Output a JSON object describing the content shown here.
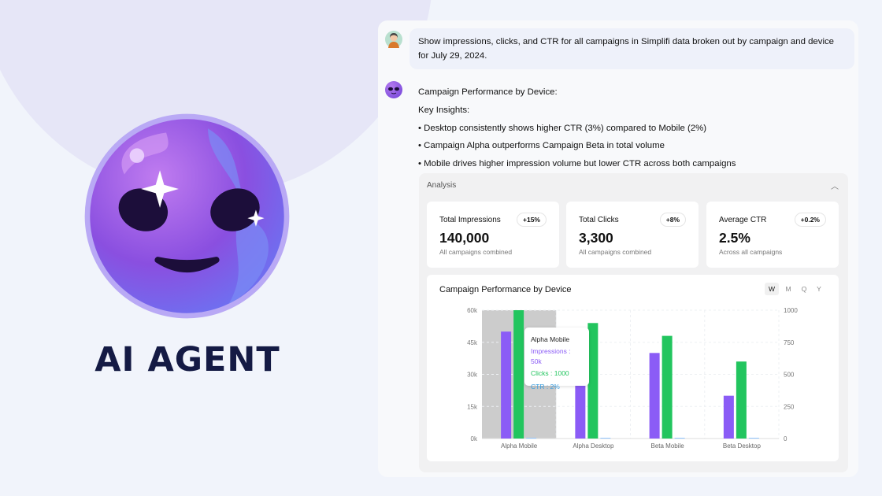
{
  "brand": {
    "title": "AI AGENT"
  },
  "chat": {
    "user_message": "Show impressions, clicks, and CTR for all campaigns in Simplifi data broken out by campaign and device for July 29, 2024.",
    "response": {
      "heading": "Campaign Performance by Device:",
      "insights_label": "Key Insights:",
      "bullets": [
        "• Desktop consistently shows higher CTR (3%) compared to Mobile (2%)",
        "• Campaign Alpha outperforms Campaign Beta in total volume",
        "• Mobile drives higher impression volume but lower CTR across both campaigns"
      ]
    }
  },
  "analysis": {
    "title": "Analysis",
    "cards": [
      {
        "label": "Total Impressions",
        "badge": "+15%",
        "value": "140,000",
        "sub": "All campaigns combined"
      },
      {
        "label": "Total Clicks",
        "badge": "+8%",
        "value": "3,300",
        "sub": "All campaigns combined"
      },
      {
        "label": "Average CTR",
        "badge": "+0.2%",
        "value": "2.5%",
        "sub": "Across all campaigns"
      }
    ],
    "periods": [
      "W",
      "M",
      "Q",
      "Y"
    ],
    "active_period": "W"
  },
  "chart_data": {
    "type": "bar",
    "title": "Campaign Performance by Device",
    "categories": [
      "Alpha Mobile",
      "Alpha Desktop",
      "Beta Mobile",
      "Beta Desktop"
    ],
    "series": [
      {
        "name": "Impressions",
        "axis": "left",
        "color": "#8b5cf6",
        "values": [
          50000,
          30000,
          40000,
          20000
        ]
      },
      {
        "name": "Clicks",
        "axis": "right",
        "color": "#22c55e",
        "values": [
          1000,
          900,
          800,
          600
        ]
      },
      {
        "name": "CTR",
        "axis": "right",
        "color": "#93c5fd",
        "values": [
          2,
          3,
          2,
          3
        ]
      }
    ],
    "left_ticks": [
      "0k",
      "15k",
      "30k",
      "45k",
      "60k"
    ],
    "left_ylim": [
      0,
      60000
    ],
    "right_ticks": [
      "0",
      "250",
      "500",
      "750",
      "1000"
    ],
    "right_ylim": [
      0,
      1000
    ],
    "grid": true,
    "tooltip": {
      "title": "Alpha Mobile",
      "lines": [
        "Impressions : 50k",
        "Clicks : 1000",
        "CTR : 2%"
      ]
    }
  }
}
